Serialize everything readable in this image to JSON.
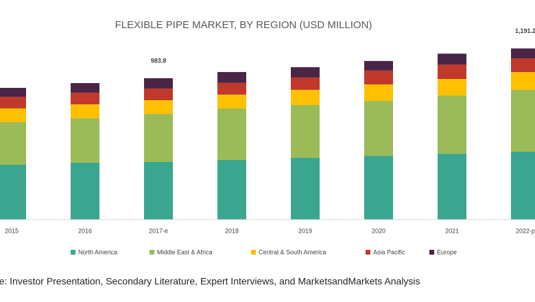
{
  "chart_data": {
    "type": "stacked-bar",
    "title": "FLEXIBLE PIPE MARKET, BY REGION (USD MILLION)",
    "categories": [
      "2015",
      "2016",
      "2017-e",
      "2018",
      "2019",
      "2020",
      "2021",
      "2022-p"
    ],
    "series": [
      {
        "name": "North America",
        "color": "#3aa68f",
        "values": [
          382,
          396,
          401.2,
          416,
          430,
          444,
          458,
          473
        ]
      },
      {
        "name": "Middle East & Africa",
        "color": "#9bbb59",
        "values": [
          296,
          310,
          334.0,
          358,
          368,
          382,
          406,
          430
        ]
      },
      {
        "name": "Central & South America",
        "color": "#ffc000",
        "values": [
          96,
          96,
          95.6,
          96,
          105,
          115,
          115,
          124
        ]
      },
      {
        "name": "Asia Pacific",
        "color": "#c0392b",
        "values": [
          81,
          81,
          81.2,
          81,
          86,
          96,
          100,
          94.2
        ]
      },
      {
        "name": "Europe",
        "color": "#4b2545",
        "values": [
          62,
          67,
          71.8,
          76,
          72,
          67,
          76,
          70
        ]
      }
    ],
    "total_labels": [
      null,
      null,
      "983.8",
      null,
      null,
      null,
      null,
      "1,191.2"
    ],
    "source": "Source: Investor Presentation, Secondary Literature, Expert Interviews, and MarketsandMarkets Analysis"
  }
}
